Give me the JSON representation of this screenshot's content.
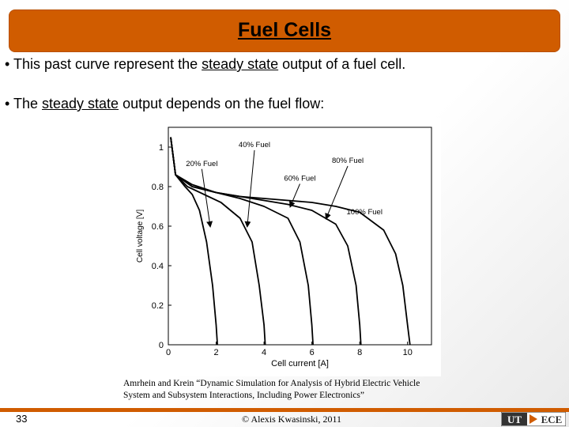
{
  "slide": {
    "title": "Fuel Cells",
    "bullet1": {
      "prefix": "• This past curve represent the ",
      "emph": "steady state",
      "suffix": " output of a fuel cell."
    },
    "bullet2": {
      "prefix": "• The ",
      "emph": "steady state",
      "suffix": " output depends on the fuel flow:"
    },
    "caption_line1": "Amrhein and Krein “Dynamic Simulation for Analysis of Hybrid Electric Vehicle",
    "caption_line2": "System and Subsystem Interactions, Including Power Electronics”",
    "page_number": "33",
    "copyright": "© Alexis Kwasinski, 2011",
    "logo": {
      "left": "UT",
      "right": "ECE",
      "colors": {
        "box": "#333333",
        "accent": "#d05c00"
      }
    }
  },
  "chart_data": {
    "type": "line",
    "xlabel": "Cell current [A]",
    "ylabel": "Cell voltage [V]",
    "xlim": [
      0,
      11
    ],
    "ylim": [
      0,
      1.1
    ],
    "x_ticks": [
      "0",
      "2",
      "4",
      "6",
      "8",
      "10"
    ],
    "y_ticks": [
      "0",
      "0.2",
      "0.4",
      "0.6",
      "0.8",
      "1"
    ],
    "series": [
      {
        "name": "20% Fuel",
        "points": [
          [
            0.1,
            1.05
          ],
          [
            0.3,
            0.86
          ],
          [
            0.7,
            0.8
          ],
          [
            1.0,
            0.76
          ],
          [
            1.3,
            0.68
          ],
          [
            1.6,
            0.52
          ],
          [
            1.85,
            0.3
          ],
          [
            2.0,
            0.1
          ],
          [
            2.05,
            0
          ]
        ]
      },
      {
        "name": "40% Fuel",
        "points": [
          [
            0.1,
            1.05
          ],
          [
            0.3,
            0.86
          ],
          [
            0.8,
            0.8
          ],
          [
            1.5,
            0.76
          ],
          [
            2.2,
            0.72
          ],
          [
            3.0,
            0.64
          ],
          [
            3.5,
            0.52
          ],
          [
            3.8,
            0.3
          ],
          [
            4.0,
            0.1
          ],
          [
            4.05,
            0
          ]
        ]
      },
      {
        "name": "60% Fuel",
        "points": [
          [
            0.1,
            1.05
          ],
          [
            0.3,
            0.86
          ],
          [
            1.0,
            0.8
          ],
          [
            2.0,
            0.77
          ],
          [
            3.0,
            0.74
          ],
          [
            4.0,
            0.7
          ],
          [
            5.0,
            0.64
          ],
          [
            5.5,
            0.52
          ],
          [
            5.85,
            0.3
          ],
          [
            6.0,
            0.1
          ],
          [
            6.05,
            0
          ]
        ]
      },
      {
        "name": "80% Fuel",
        "points": [
          [
            0.1,
            1.05
          ],
          [
            0.3,
            0.86
          ],
          [
            1.0,
            0.8
          ],
          [
            2.0,
            0.77
          ],
          [
            3.0,
            0.75
          ],
          [
            4.0,
            0.73
          ],
          [
            5.0,
            0.71
          ],
          [
            6.0,
            0.68
          ],
          [
            7.0,
            0.61
          ],
          [
            7.5,
            0.5
          ],
          [
            7.85,
            0.3
          ],
          [
            8.0,
            0.1
          ],
          [
            8.05,
            0
          ]
        ]
      },
      {
        "name": "100% Fuel",
        "points": [
          [
            0.1,
            1.05
          ],
          [
            0.3,
            0.86
          ],
          [
            1.0,
            0.81
          ],
          [
            2.0,
            0.77
          ],
          [
            3.0,
            0.75
          ],
          [
            4.0,
            0.74
          ],
          [
            5.0,
            0.73
          ],
          [
            6.0,
            0.72
          ],
          [
            7.0,
            0.7
          ],
          [
            8.0,
            0.67
          ],
          [
            9.0,
            0.58
          ],
          [
            9.5,
            0.46
          ],
          [
            9.8,
            0.3
          ],
          [
            10.0,
            0.1
          ],
          [
            10.1,
            0
          ]
        ]
      }
    ],
    "annotations": [
      {
        "text": "20% Fuel",
        "x": 1.4,
        "y": 0.905,
        "arrow_to": [
          1.75,
          0.6
        ]
      },
      {
        "text": "40% Fuel",
        "x": 3.6,
        "y": 1.0,
        "arrow_to": [
          3.3,
          0.6
        ]
      },
      {
        "text": "60% Fuel",
        "x": 5.5,
        "y": 0.83,
        "arrow_to": [
          5.1,
          0.7
        ]
      },
      {
        "text": "80% Fuel",
        "x": 7.5,
        "y": 0.92,
        "arrow_to": [
          6.6,
          0.64
        ]
      },
      {
        "text": "100% Fuel",
        "x": 8.2,
        "y": 0.66,
        "arrow_to": null
      }
    ]
  }
}
